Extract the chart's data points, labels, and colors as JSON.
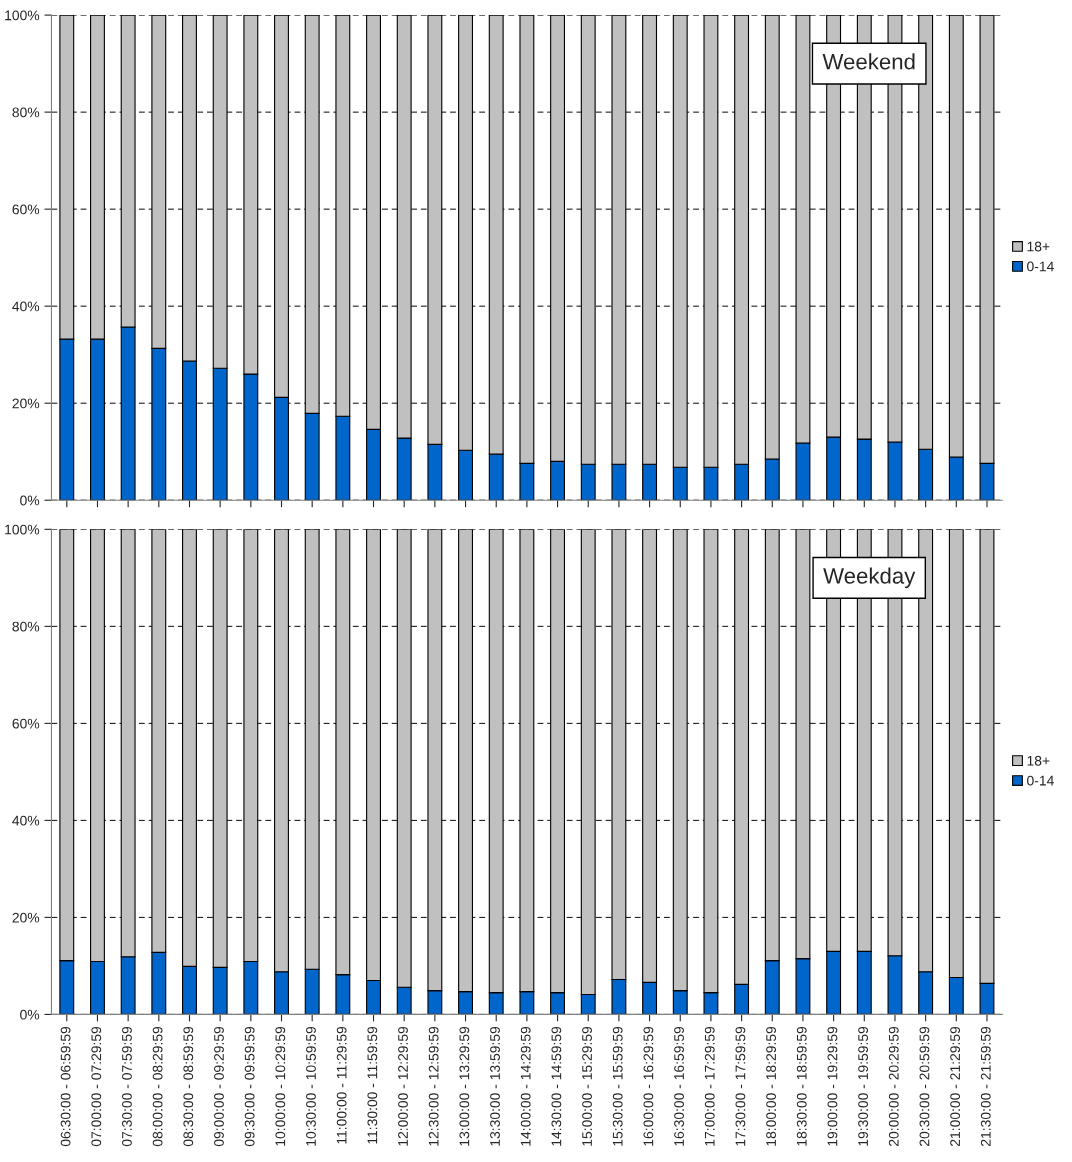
{
  "chart_data": [
    {
      "type": "bar",
      "stacked": true,
      "title": "Weekend",
      "categories": [
        null,
        null,
        null,
        null,
        null,
        null,
        null,
        null,
        null,
        null,
        null,
        null,
        null,
        null,
        null,
        null,
        null,
        null,
        null,
        null,
        null,
        null,
        null,
        null,
        null,
        null,
        null,
        null,
        null,
        null,
        null
      ],
      "series": [
        {
          "name": "0-14",
          "color": "#0066cc",
          "values": [
            33.2,
            33.2,
            35.7,
            31.3,
            28.7,
            27.2,
            26.0,
            21.2,
            17.9,
            17.3,
            14.6,
            12.8,
            11.5,
            10.3,
            9.5,
            7.6,
            8.0,
            7.4,
            7.4,
            7.4,
            6.8,
            6.8,
            7.4,
            8.5,
            11.8,
            13.0,
            12.6,
            12.0,
            10.5,
            8.9,
            7.6
          ]
        },
        {
          "name": "18+",
          "color": "#c0c0c0",
          "values": [
            66.8,
            66.8,
            64.3,
            68.7,
            71.3,
            72.8,
            74.0,
            78.8,
            82.1,
            82.7,
            85.4,
            87.2,
            88.5,
            89.7,
            90.5,
            92.4,
            92.0,
            92.6,
            92.6,
            92.6,
            93.2,
            93.2,
            92.6,
            91.5,
            88.2,
            87.0,
            87.4,
            88.0,
            89.5,
            91.1,
            92.4
          ]
        }
      ],
      "ylim": [
        0,
        100
      ],
      "yticks": [
        {
          "value": 0,
          "label": "0%"
        },
        {
          "value": 20,
          "label": "20%"
        },
        {
          "value": 40,
          "label": "40%"
        },
        {
          "value": 60,
          "label": "60%"
        },
        {
          "value": 80,
          "label": "80%"
        },
        {
          "value": 100,
          "label": "100%"
        }
      ],
      "grid": "y",
      "legend": "right",
      "tick_labels": "y"
    },
    {
      "type": "bar",
      "stacked": true,
      "title": "Weekday",
      "categories": [
        "06:30:00 - 06:59:59",
        "07:00:00 - 07:29:59",
        "07:30:00 - 07:59:59",
        "08:00:00 - 08:29:59",
        "08:30:00 - 08:59:59",
        "09:00:00 - 09:29:59",
        "09:30:00 - 09:59:59",
        "10:00:00 - 10:29:59",
        "10:30:00 - 10:59:59",
        "11:00:00 - 11:29:59",
        "11:30:00 - 11:59:59",
        "12:00:00 - 12:29:59",
        "12:30:00 - 12:59:59",
        "13:00:00 - 13:29:59",
        "13:30:00 - 13:59:59",
        "14:00:00 - 14:29:59",
        "14:30:00 - 14:59:59",
        "15:00:00 - 15:29:59",
        "15:30:00 - 15:59:59",
        "16:00:00 - 16:29:59",
        "16:30:00 - 16:59:59",
        "17:00:00 - 17:29:59",
        "17:30:00 - 17:59:59",
        "18:00:00 - 18:29:59",
        "18:30:00 - 18:59:59",
        "19:00:00 - 19:29:59",
        "19:30:00 - 19:59:59",
        "20:00:00 - 20:29:59",
        "20:30:00 - 20:59:59",
        "21:00:00 - 21:29:59",
        "21:30:00 - 21:59:59"
      ],
      "series": [
        {
          "name": "0-14",
          "color": "#0066cc",
          "values": [
            11.1,
            10.9,
            11.9,
            12.8,
            9.9,
            9.7,
            10.9,
            8.8,
            9.3,
            8.2,
            7.0,
            5.6,
            4.9,
            4.7,
            4.5,
            4.7,
            4.5,
            4.1,
            7.2,
            6.6,
            4.9,
            4.5,
            6.2,
            11.1,
            11.5,
            13.0,
            13.0,
            12.1,
            8.8,
            7.6,
            6.4
          ]
        },
        {
          "name": "18+",
          "color": "#c0c0c0",
          "values": [
            88.9,
            89.1,
            88.1,
            87.2,
            90.1,
            90.3,
            89.1,
            91.2,
            90.7,
            91.8,
            93.0,
            94.4,
            95.1,
            95.3,
            95.5,
            95.3,
            95.5,
            95.9,
            92.8,
            93.4,
            95.1,
            95.5,
            93.8,
            88.9,
            88.5,
            87.0,
            87.0,
            87.9,
            91.2,
            92.4,
            93.6
          ]
        }
      ],
      "ylim": [
        0,
        100
      ],
      "yticks": [
        {
          "value": 0,
          "label": "0%"
        },
        {
          "value": 20,
          "label": "20%"
        },
        {
          "value": 40,
          "label": "40%"
        },
        {
          "value": 60,
          "label": "60%"
        },
        {
          "value": 80,
          "label": "80%"
        },
        {
          "value": 100,
          "label": "100%"
        }
      ],
      "grid": "y",
      "legend": "right"
    }
  ]
}
